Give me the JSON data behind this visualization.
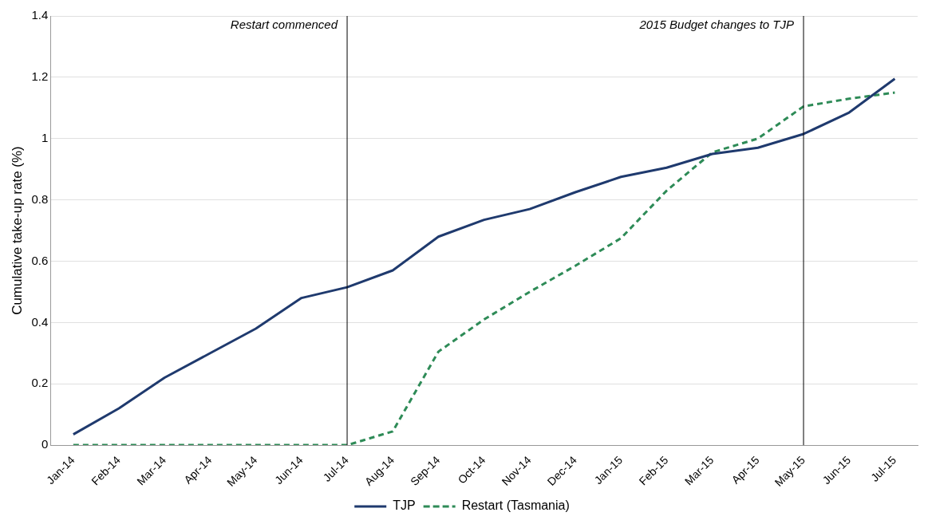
{
  "chart_data": {
    "type": "line",
    "ylabel": "Cumulative take-up rate (%)",
    "categories": [
      "Jan-14",
      "Feb-14",
      "Mar-14",
      "Apr-14",
      "May-14",
      "Jun-14",
      "Jul-14",
      "Aug-14",
      "Sep-14",
      "Oct-14",
      "Nov-14",
      "Dec-14",
      "Jan-15",
      "Feb-15",
      "Mar-15",
      "Apr-15",
      "May-15",
      "Jun-15",
      "Jul-15"
    ],
    "series": [
      {
        "name": "TJP",
        "color": "#1f3a6e",
        "line_style": "solid",
        "values": [
          0.035,
          0.12,
          0.22,
          0.3,
          0.38,
          0.48,
          0.515,
          0.57,
          0.68,
          0.735,
          0.77,
          0.825,
          0.875,
          0.905,
          0.95,
          0.97,
          1.015,
          1.085,
          1.195
        ]
      },
      {
        "name": "Restart (Tasmania)",
        "color": "#2e8b57",
        "line_style": "dashed",
        "values": [
          0,
          0,
          0,
          0,
          0,
          0,
          0,
          0.045,
          0.305,
          0.41,
          0.5,
          0.585,
          0.675,
          0.83,
          0.955,
          1.0,
          1.105,
          1.13,
          1.15
        ]
      }
    ],
    "ylim": [
      0,
      1.4
    ],
    "yticks": [
      0,
      0.2,
      0.4,
      0.6,
      0.8,
      1,
      1.2,
      1.4
    ],
    "grid": "y",
    "legend": "bottom",
    "marker": "none",
    "ref_lines": [
      {
        "axis": "x",
        "value": "Jul-14",
        "label": "Restart commenced",
        "color": "#000000"
      },
      {
        "axis": "x",
        "value": "May-15",
        "label": "2015 Budget changes to TJP",
        "color": "#000000"
      }
    ]
  }
}
